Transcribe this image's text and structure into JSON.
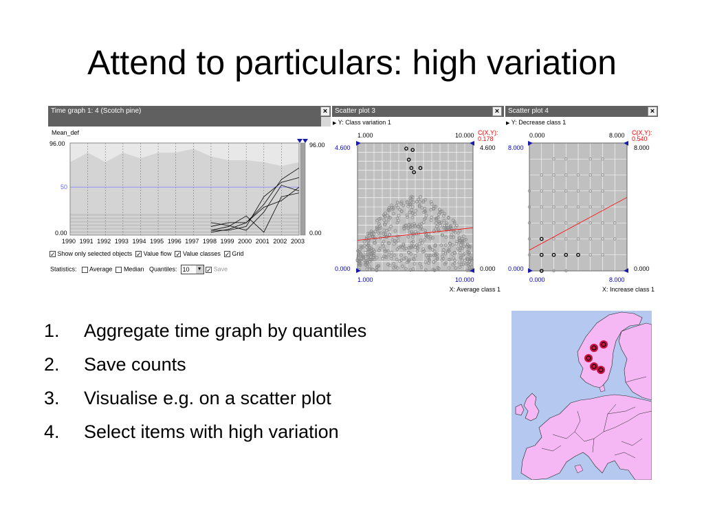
{
  "slide": {
    "title": "Attend to particulars: high variation",
    "steps": [
      {
        "num": "1.",
        "text": "Aggregate time graph by quantiles"
      },
      {
        "num": "2.",
        "text": "Save counts"
      },
      {
        "num": "3.",
        "text": "Visualise e.g. on a scatter plot"
      },
      {
        "num": "4.",
        "text": "Select items with high variation"
      }
    ]
  },
  "time_graph": {
    "window_title": "Time graph 1: 4 (Scotch pine)",
    "attribute": "Mean_def",
    "y_max_label": "96.00",
    "y_mid_label": "50",
    "y_min_label": "0.00",
    "right_max_label": "96.00",
    "right_min_label": "0.00",
    "years": [
      "1990",
      "1991",
      "1992",
      "1993",
      "1994",
      "1995",
      "1996",
      "1997",
      "1998",
      "1999",
      "2000",
      "2001",
      "2002",
      "2003"
    ],
    "options": {
      "show_selected": "Show only selected objects",
      "value_flow": "Value flow",
      "value_classes": "Value classes",
      "grid": "Grid"
    },
    "statistics_label": "Statistics:",
    "average_label": "Average",
    "median_label": "Median",
    "quantiles_label": "Quantiles:",
    "quantiles_value": "10",
    "save_label": "Save"
  },
  "scatter3": {
    "window_title": "Scatter plot 3",
    "y_label": "Y: Class variation 1",
    "x_label": "X: Average class 1",
    "x_min_top": "1.000",
    "x_max_top": "10.000",
    "x_min_bottom": "1.000",
    "x_max_bottom": "10.000",
    "y_max_left": "4.600",
    "y_max_right": "4.600",
    "y_min_left": "0.000",
    "y_min_right": "0.000",
    "corr_label": "C(X,Y):",
    "corr_value": "0.178"
  },
  "scatter4": {
    "window_title": "Scatter plot 4",
    "y_label": "Y: Decrease class 1",
    "x_label": "X: Increase class 1",
    "x_min_top": "0.000",
    "x_max_top": "8.000",
    "x_min_bottom": "0.000",
    "x_max_bottom": "8.000",
    "y_max_left": "8.000",
    "y_max_right": "8.000",
    "y_min_left": "0.000",
    "y_min_right": "0.000",
    "corr_label": "C(X,Y):",
    "corr_value": "0.540"
  },
  "colors": {
    "plot_bg": "#c0c0c0",
    "highlight": "#000000",
    "correlation_red": "#ff0000",
    "axis_blue": "#0000cc",
    "map_land": "#f5b8f5",
    "map_sea": "#b4c8f0",
    "map_marker": "#cc1144"
  },
  "chart_data": [
    {
      "type": "line",
      "title": "Time graph 1: 4 (Scotch pine)",
      "ylabel": "Mean_def",
      "x": [
        "1990",
        "1991",
        "1992",
        "1993",
        "1994",
        "1995",
        "1996",
        "1997",
        "1998",
        "1999",
        "2000",
        "2001",
        "2002",
        "2003"
      ],
      "ylim": [
        0,
        96
      ],
      "grid": true,
      "selected_series": [
        {
          "values": [
            null,
            null,
            null,
            null,
            null,
            null,
            null,
            null,
            5,
            5,
            9,
            40,
            55,
            60
          ]
        },
        {
          "values": [
            null,
            null,
            null,
            null,
            null,
            null,
            null,
            null,
            9,
            13,
            13,
            32,
            58,
            70
          ]
        },
        {
          "values": [
            null,
            null,
            null,
            null,
            null,
            null,
            null,
            null,
            5,
            9,
            20,
            3,
            40,
            44
          ]
        },
        {
          "values": [
            null,
            null,
            null,
            null,
            null,
            null,
            null,
            null,
            13,
            10,
            5,
            24,
            52,
            46
          ]
        },
        {
          "values": [
            null,
            null,
            null,
            null,
            null,
            null,
            null,
            null,
            3,
            6,
            13,
            29,
            36,
            50
          ]
        }
      ],
      "quantile_max_band": [
        76,
        86,
        76,
        86,
        80,
        86,
        86,
        90,
        82,
        78,
        78,
        76,
        72,
        76
      ]
    },
    {
      "type": "scatter",
      "title": "Scatter plot 3",
      "xlabel": "X: Average class 1",
      "ylabel": "Y: Class variation 1",
      "xlim": [
        1,
        10
      ],
      "ylim": [
        0,
        4.6
      ],
      "correlation": 0.178,
      "highlighted_points": [
        [
          4.8,
          4.4
        ],
        [
          5.3,
          4.35
        ],
        [
          5.0,
          4.0
        ],
        [
          5.2,
          3.7
        ],
        [
          5.9,
          3.7
        ],
        [
          5.4,
          3.55
        ]
      ]
    },
    {
      "type": "scatter",
      "title": "Scatter plot 4",
      "xlabel": "X: Increase class 1",
      "ylabel": "Y: Decrease class 1",
      "xlim": [
        0,
        8
      ],
      "ylim": [
        0,
        8
      ],
      "correlation": 0.54,
      "highlighted_points": [
        [
          1,
          1
        ],
        [
          1,
          2
        ],
        [
          1,
          0
        ],
        [
          2,
          1
        ],
        [
          3,
          1
        ],
        [
          4,
          1
        ]
      ]
    }
  ]
}
